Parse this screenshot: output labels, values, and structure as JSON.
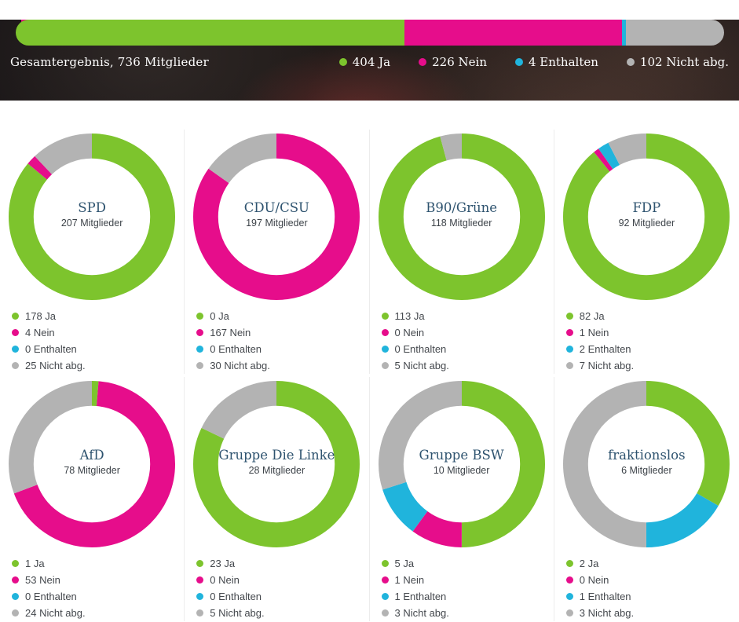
{
  "colors": {
    "ja": "#7dc42d",
    "nein": "#e60d8b",
    "enthalten": "#20b4dc",
    "nicht_abg": "#b3b3b3"
  },
  "color_order": [
    "ja",
    "nein",
    "enthalten",
    "nicht_abg"
  ],
  "header": {
    "title": "Gesamtergebnis, 736 Mitglieder",
    "legend": [
      {
        "key": "ja",
        "label": "404 Ja"
      },
      {
        "key": "nein",
        "label": "226 Nein"
      },
      {
        "key": "enthalten",
        "label": "4 Enthalten"
      },
      {
        "key": "nicht_abg",
        "label": "102 Nicht abg."
      }
    ]
  },
  "chart_data": [
    {
      "type": "bar",
      "layout": "horizontal_stacked",
      "title": "Gesamtergebnis, 736 Mitglieder",
      "categories": [
        "Ja",
        "Nein",
        "Enthalten",
        "Nicht abg."
      ],
      "values": [
        404,
        226,
        4,
        102
      ],
      "total": 736,
      "legend": [
        "404 Ja",
        "226 Nein",
        "4 Enthalten",
        "102 Nicht abg."
      ],
      "legend_position": "bottom-right"
    },
    {
      "type": "pie",
      "subtype": "donut",
      "title": "SPD",
      "subtitle": "207 Mitglieder",
      "categories": [
        "Ja",
        "Nein",
        "Enthalten",
        "Nicht abg."
      ],
      "values": [
        178,
        4,
        0,
        25
      ],
      "legend": [
        "178 Ja",
        "4 Nein",
        "0 Enthalten",
        "25 Nicht abg."
      ]
    },
    {
      "type": "pie",
      "subtype": "donut",
      "title": "CDU/CSU",
      "subtitle": "197 Mitglieder",
      "categories": [
        "Ja",
        "Nein",
        "Enthalten",
        "Nicht abg."
      ],
      "values": [
        0,
        167,
        0,
        30
      ],
      "legend": [
        "0 Ja",
        "167 Nein",
        "0 Enthalten",
        "30 Nicht abg."
      ]
    },
    {
      "type": "pie",
      "subtype": "donut",
      "title": "B90/Grüne",
      "subtitle": "118 Mitglieder",
      "categories": [
        "Ja",
        "Nein",
        "Enthalten",
        "Nicht abg."
      ],
      "values": [
        113,
        0,
        0,
        5
      ],
      "legend": [
        "113 Ja",
        "0 Nein",
        "0 Enthalten",
        "5 Nicht abg."
      ]
    },
    {
      "type": "pie",
      "subtype": "donut",
      "title": "FDP",
      "subtitle": "92 Mitglieder",
      "categories": [
        "Ja",
        "Nein",
        "Enthalten",
        "Nicht abg."
      ],
      "values": [
        82,
        1,
        2,
        7
      ],
      "legend": [
        "82 Ja",
        "1 Nein",
        "2 Enthalten",
        "7 Nicht abg."
      ]
    },
    {
      "type": "pie",
      "subtype": "donut",
      "title": "AfD",
      "subtitle": "78 Mitglieder",
      "categories": [
        "Ja",
        "Nein",
        "Enthalten",
        "Nicht abg."
      ],
      "values": [
        1,
        53,
        0,
        24
      ],
      "legend": [
        "1 Ja",
        "53 Nein",
        "0 Enthalten",
        "24 Nicht abg."
      ]
    },
    {
      "type": "pie",
      "subtype": "donut",
      "title": "Gruppe Die Linke",
      "subtitle": "28 Mitglieder",
      "categories": [
        "Ja",
        "Nein",
        "Enthalten",
        "Nicht abg."
      ],
      "values": [
        23,
        0,
        0,
        5
      ],
      "legend": [
        "23 Ja",
        "0 Nein",
        "0 Enthalten",
        "5 Nicht abg."
      ]
    },
    {
      "type": "pie",
      "subtype": "donut",
      "title": "Gruppe BSW",
      "subtitle": "10 Mitglieder",
      "categories": [
        "Ja",
        "Nein",
        "Enthalten",
        "Nicht abg."
      ],
      "values": [
        5,
        1,
        1,
        3
      ],
      "legend": [
        "5 Ja",
        "1 Nein",
        "1 Enthalten",
        "3 Nicht abg."
      ]
    },
    {
      "type": "pie",
      "subtype": "donut",
      "title": "fraktionslos",
      "subtitle": "6 Mitglieder",
      "categories": [
        "Ja",
        "Nein",
        "Enthalten",
        "Nicht abg."
      ],
      "values": [
        2,
        0,
        1,
        3
      ],
      "legend": [
        "2 Ja",
        "0 Nein",
        "1 Enthalten",
        "3 Nicht abg."
      ]
    }
  ]
}
